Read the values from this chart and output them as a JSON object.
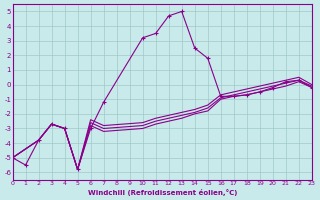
{
  "xlabel": "Windchill (Refroidissement éolien,°C)",
  "bg_color": "#c8eaea",
  "grid_color": "#a0c8c8",
  "line_color": "#8b008b",
  "xlim": [
    0,
    23
  ],
  "ylim": [
    -6.5,
    5.5
  ],
  "xticks": [
    0,
    1,
    2,
    3,
    4,
    5,
    6,
    7,
    8,
    9,
    10,
    11,
    12,
    13,
    14,
    15,
    16,
    17,
    18,
    19,
    20,
    21,
    22,
    23
  ],
  "yticks": [
    -6,
    -5,
    -4,
    -3,
    -2,
    -1,
    0,
    1,
    2,
    3,
    4,
    5
  ],
  "line1_x": [
    0,
    1,
    2,
    3,
    4,
    5,
    6,
    7,
    10,
    11,
    12,
    13,
    14,
    15,
    16,
    17,
    18,
    19,
    20,
    21,
    22,
    23
  ],
  "line1_y": [
    -5.0,
    -5.5,
    -3.8,
    -2.7,
    -3.0,
    -5.8,
    -3.0,
    -1.2,
    3.2,
    3.5,
    4.7,
    5.0,
    2.5,
    1.8,
    -0.8,
    -0.8,
    -0.7,
    -0.5,
    -0.2,
    0.2,
    0.3,
    -0.2
  ],
  "line2_x": [
    0,
    2,
    3,
    4,
    5,
    6,
    7,
    10,
    11,
    12,
    13,
    14,
    15,
    16,
    17,
    18,
    19,
    20,
    21,
    22,
    23
  ],
  "line2_y": [
    -5.0,
    -3.8,
    -2.7,
    -3.0,
    -5.8,
    -2.8,
    -3.2,
    -3.0,
    -2.7,
    -2.5,
    -2.3,
    -2.0,
    -1.8,
    -1.0,
    -0.8,
    -0.7,
    -0.5,
    -0.3,
    -0.1,
    0.2,
    -0.2
  ],
  "line3_x": [
    0,
    2,
    3,
    4,
    5,
    6,
    7,
    10,
    11,
    12,
    13,
    14,
    15,
    16,
    17,
    18,
    19,
    20,
    21,
    22,
    23
  ],
  "line3_y": [
    -5.0,
    -3.8,
    -2.7,
    -3.0,
    -5.8,
    -2.6,
    -3.0,
    -2.8,
    -2.5,
    -2.3,
    -2.1,
    -1.9,
    -1.6,
    -0.9,
    -0.7,
    -0.5,
    -0.3,
    -0.1,
    0.1,
    0.3,
    -0.1
  ],
  "line4_x": [
    0,
    2,
    3,
    4,
    5,
    6,
    7,
    10,
    11,
    12,
    13,
    14,
    15,
    16,
    17,
    18,
    19,
    20,
    21,
    22,
    23
  ],
  "line4_y": [
    -5.0,
    -3.8,
    -2.7,
    -3.0,
    -5.8,
    -2.4,
    -2.8,
    -2.6,
    -2.3,
    -2.1,
    -1.9,
    -1.7,
    -1.4,
    -0.7,
    -0.5,
    -0.3,
    -0.1,
    0.1,
    0.3,
    0.5,
    0.0
  ]
}
